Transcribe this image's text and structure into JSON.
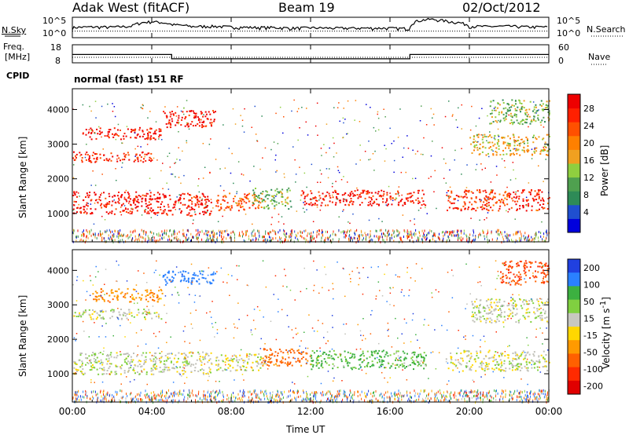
{
  "header": {
    "station": "Adak West (fitACF)",
    "beam": "Beam 19",
    "date": "02/Oct/2012"
  },
  "top_panel": {
    "left_label": "N.Sky",
    "right_label": "N.Search",
    "ticks": [
      "10^5",
      "10^0"
    ]
  },
  "freq_panel": {
    "left_label_1": "Freq.",
    "left_label_2": "[MHz]",
    "left_ticks": [
      "18",
      "8"
    ],
    "right_label": "Nave",
    "right_ticks": [
      "60",
      "0"
    ],
    "cpid_label": "CPID",
    "cpid_text": "normal (fast) 151 RF"
  },
  "colors": {
    "power": [
      "#0000dd",
      "#1f4fd0",
      "#2e8b57",
      "#4fa04f",
      "#8fcf3f",
      "#f0a020",
      "#ff8000",
      "#ff5000",
      "#ff2000",
      "#ee0000"
    ],
    "velocity": [
      "#2040e0",
      "#2a80ff",
      "#3cb040",
      "#80d040",
      "#c8c8c0",
      "#ffd700",
      "#ff9a00",
      "#ff6000",
      "#ff2a00",
      "#e00000"
    ],
    "ground": "#c0c0b8"
  },
  "chart_data": [
    {
      "type": "line",
      "title": "N.Sky / N.Search",
      "x": [
        "00:00",
        "01:00",
        "02:00",
        "03:00",
        "04:00",
        "05:00",
        "06:00",
        "07:00",
        "08:00",
        "09:00",
        "10:00",
        "11:00",
        "12:00",
        "13:00",
        "14:00",
        "15:00",
        "16:00",
        "17:00",
        "18:00",
        "19:00",
        "20:00",
        "21:00",
        "22:00",
        "23:00",
        "24:00"
      ],
      "series": [
        {
          "name": "N.Sky",
          "values": [
            300,
            400,
            350,
            600,
            8000,
            1500,
            500,
            600,
            400,
            300,
            300,
            200,
            250,
            200,
            200,
            200,
            200,
            150,
            30000,
            8000,
            600,
            500,
            600,
            400,
            400
          ]
        }
      ],
      "yscale": "log",
      "ylim": [
        1,
        100000
      ]
    },
    {
      "type": "line",
      "title": "Freq. / Nave",
      "x": [
        "00:00",
        "05:00",
        "05:01",
        "17:00",
        "17:01",
        "24:00"
      ],
      "series": [
        {
          "name": "Freq.",
          "values": [
            12.6,
            12.6,
            10.2,
            10.2,
            12.6,
            12.6
          ]
        },
        {
          "name": "Nave",
          "values": [
            20,
            20,
            20,
            20,
            20,
            20
          ]
        }
      ],
      "ylim": [
        8,
        18
      ]
    },
    {
      "type": "heatmap",
      "ylabel": "Slant Range [km]",
      "yticks": [
        1000,
        2000,
        3000,
        4000
      ],
      "ylim": [
        180,
        4600
      ],
      "xlim": [
        "00:00",
        "24:00"
      ],
      "colorbar_label": "Power [dB]",
      "colorbar_ticks": [
        4,
        8,
        12,
        16,
        20,
        24,
        28
      ],
      "bands": [
        {
          "t0": 0.0,
          "t1": 4.5,
          "r0": 1000,
          "r1": 1650,
          "level": 28
        },
        {
          "t0": 4.5,
          "t1": 7.0,
          "r0": 950,
          "r1": 1600,
          "level": 27
        },
        {
          "t0": 0.0,
          "t1": 4.0,
          "r0": 2500,
          "r1": 2800,
          "level": 26
        },
        {
          "t0": 0.5,
          "t1": 4.5,
          "r0": 3150,
          "r1": 3500,
          "level": 27
        },
        {
          "t0": 4.5,
          "t1": 7.2,
          "r0": 3500,
          "r1": 4000,
          "level": 28
        },
        {
          "t0": 7.2,
          "t1": 9.5,
          "r0": 1100,
          "r1": 1600,
          "level": 22
        },
        {
          "t0": 9.0,
          "t1": 11.0,
          "r0": 1150,
          "r1": 1750,
          "level": 12
        },
        {
          "t0": 11.5,
          "t1": 17.8,
          "r0": 1250,
          "r1": 1700,
          "level": 27
        },
        {
          "t0": 18.8,
          "t1": 24.0,
          "r0": 1100,
          "r1": 1700,
          "level": 25
        },
        {
          "t0": 20.0,
          "t1": 24.0,
          "r0": 2700,
          "r1": 3300,
          "level": 16
        },
        {
          "t0": 21.0,
          "t1": 24.0,
          "r0": 3600,
          "r1": 4300,
          "level": 12
        }
      ]
    },
    {
      "type": "heatmap",
      "ylabel": "Slant Range [km]",
      "yticks": [
        1000,
        2000,
        3000,
        4000
      ],
      "ylim": [
        180,
        4600
      ],
      "xlim": [
        "00:00",
        "24:00"
      ],
      "xlabel": "Time UT",
      "xticks": [
        "00:00",
        "04:00",
        "08:00",
        "12:00",
        "16:00",
        "20:00",
        "00:00"
      ],
      "colorbar_label": "Velocity [m s^-1]",
      "colorbar_ticks": [
        200,
        100,
        50,
        15,
        -15,
        -50,
        -100,
        -200
      ],
      "bands": [
        {
          "t0": 0.0,
          "t1": 7.0,
          "r0": 1000,
          "r1": 1650,
          "level": 0
        },
        {
          "t0": 0.0,
          "t1": 4.5,
          "r0": 2600,
          "r1": 2900,
          "level": 0
        },
        {
          "t0": 1.0,
          "t1": 4.5,
          "r0": 3100,
          "r1": 3500,
          "level": -60
        },
        {
          "t0": 4.5,
          "t1": 7.2,
          "r0": 3600,
          "r1": 4000,
          "level": 120
        },
        {
          "t0": 7.2,
          "t1": 10.0,
          "r0": 1100,
          "r1": 1600,
          "level": 0
        },
        {
          "t0": 9.5,
          "t1": 12.0,
          "r0": 1250,
          "r1": 1750,
          "level": -90
        },
        {
          "t0": 12.0,
          "t1": 17.8,
          "r0": 1150,
          "r1": 1700,
          "level": 40
        },
        {
          "t0": 18.8,
          "t1": 24.0,
          "r0": 1100,
          "r1": 1700,
          "level": 0
        },
        {
          "t0": 20.0,
          "t1": 24.0,
          "r0": 2500,
          "r1": 3200,
          "level": 0
        },
        {
          "t0": 21.5,
          "t1": 24.0,
          "r0": 3600,
          "r1": 4300,
          "level": -150
        }
      ]
    }
  ]
}
